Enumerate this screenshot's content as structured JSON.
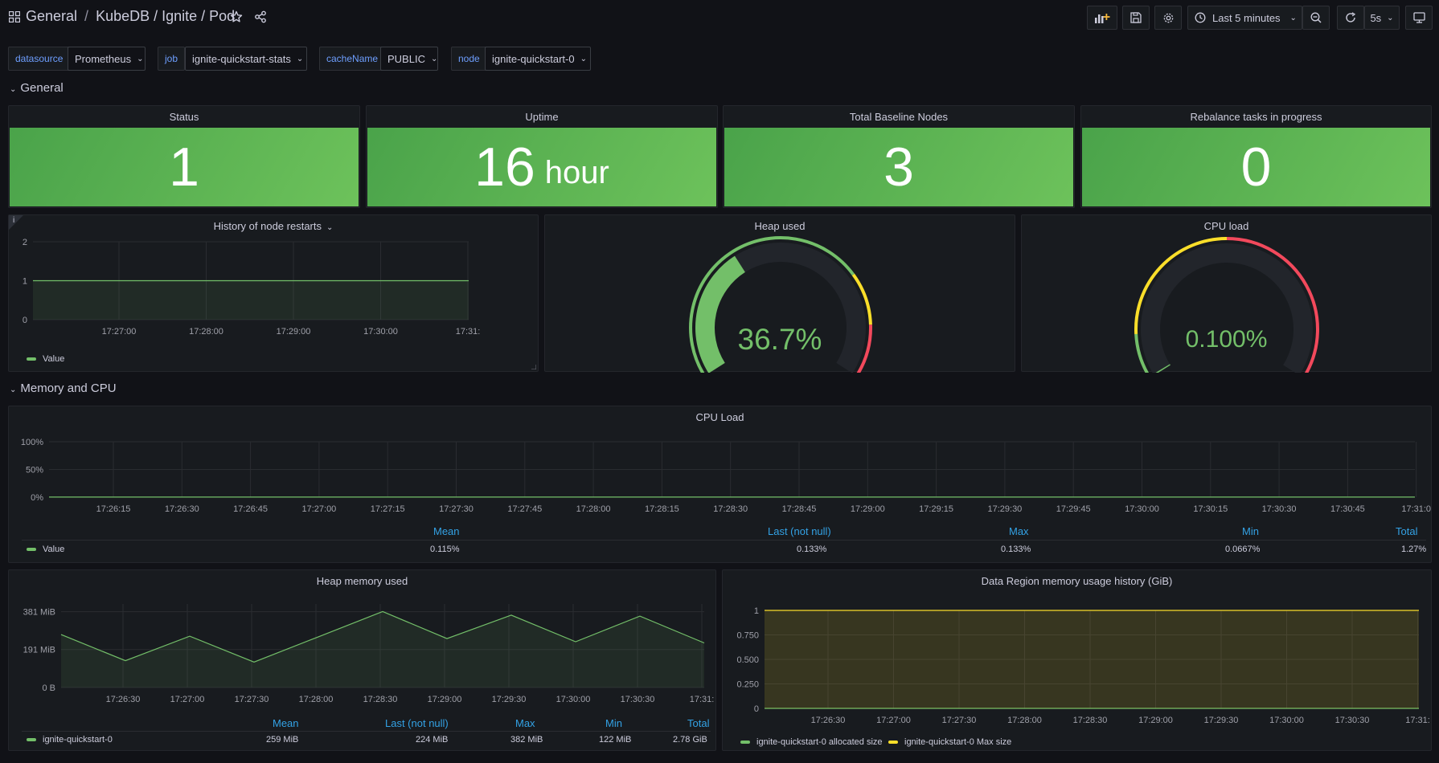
{
  "breadcrumb": {
    "root": "General",
    "separator": "/",
    "title": "KubeDB / Ignite / Pod"
  },
  "toolbar": {
    "time_range": "Last 5 minutes",
    "refresh_interval": "5s"
  },
  "variables": [
    {
      "label": "datasource",
      "value": "Prometheus"
    },
    {
      "label": "job",
      "value": "ignite-quickstart-stats"
    },
    {
      "label": "cacheName",
      "value": "PUBLIC"
    },
    {
      "label": "node",
      "value": "ignite-quickstart-0"
    }
  ],
  "rows": {
    "general": "General",
    "memory_cpu": "Memory and CPU"
  },
  "stats": [
    {
      "title": "Status",
      "value": "1",
      "unit": ""
    },
    {
      "title": "Uptime",
      "value": "16",
      "unit": "hour"
    },
    {
      "title": "Total Baseline Nodes",
      "value": "3",
      "unit": ""
    },
    {
      "title": "Rebalance tasks in progress",
      "value": "0",
      "unit": ""
    }
  ],
  "restarts": {
    "title": "History of node restarts",
    "info": "i",
    "legend": "Value",
    "color": "#73bf69",
    "chart_data": {
      "type": "line",
      "x": [
        "17:26:40",
        "17:27:00",
        "17:28:00",
        "17:29:00",
        "17:30:00",
        "17:31:00"
      ],
      "series": [
        {
          "name": "Value",
          "values": [
            1,
            1,
            1,
            1,
            1,
            1
          ]
        }
      ],
      "ylim": [
        0,
        2
      ],
      "yticks": [
        "0",
        "1",
        "2"
      ],
      "xticks": [
        "17:27:00",
        "17:28:00",
        "17:29:00",
        "17:30:00",
        "17:31:"
      ]
    }
  },
  "heap_gauge": {
    "title": "Heap used",
    "value": 36.7,
    "display": "36.7%",
    "color": "#73bf69"
  },
  "cpu_gauge": {
    "title": "CPU load",
    "value": 0.1,
    "display": "0.100%",
    "color": "#73bf69"
  },
  "cpu_load": {
    "title": "CPU Load",
    "legend": "Value",
    "color": "#73bf69",
    "headers": {
      "mean": "Mean",
      "last": "Last (not null)",
      "max": "Max",
      "min": "Min",
      "total": "Total"
    },
    "values": {
      "mean": "0.115%",
      "last": "0.133%",
      "max": "0.133%",
      "min": "0.0667%",
      "total": "1.27%"
    },
    "chart_data": {
      "type": "line",
      "yticks": [
        "0%",
        "50%",
        "100%"
      ],
      "ylim": [
        0,
        100
      ],
      "xticks": [
        "17:26:15",
        "17:26:30",
        "17:26:45",
        "17:27:00",
        "17:27:15",
        "17:27:30",
        "17:27:45",
        "17:28:00",
        "17:28:15",
        "17:28:30",
        "17:28:45",
        "17:29:00",
        "17:29:15",
        "17:29:30",
        "17:29:45",
        "17:30:00",
        "17:30:15",
        "17:30:30",
        "17:30:45",
        "17:31:0"
      ],
      "series": [
        {
          "name": "Value",
          "values": [
            0.1,
            0.1,
            0.1,
            0.1,
            0.13,
            0.13
          ]
        }
      ]
    }
  },
  "heap_memory": {
    "title": "Heap memory used",
    "legend": "ignite-quickstart-0",
    "color": "#73bf69",
    "headers": {
      "mean": "Mean",
      "last": "Last (not null)",
      "max": "Max",
      "min": "Min",
      "total": "Total"
    },
    "values": {
      "mean": "259 MiB",
      "last": "224 MiB",
      "max": "382 MiB",
      "min": "122 MiB",
      "total": "2.78 GiB"
    },
    "chart_data": {
      "type": "area",
      "yticks": [
        "0 B",
        "191 MiB",
        "381 MiB"
      ],
      "ylim": [
        0,
        420
      ],
      "xticks": [
        "17:26:30",
        "17:27:00",
        "17:27:30",
        "17:28:00",
        "17:28:30",
        "17:29:00",
        "17:29:30",
        "17:30:00",
        "17:30:30",
        "17:31:"
      ],
      "x": [
        "17:26:10",
        "17:26:30",
        "17:26:55",
        "17:27:30",
        "17:28:00",
        "17:28:30",
        "17:29:00",
        "17:29:30",
        "17:30:00",
        "17:30:30",
        "17:31:00"
      ],
      "series": [
        {
          "name": "ignite-quickstart-0",
          "values": [
            266,
            135,
            258,
            128,
            255,
            382,
            246,
            364,
            230,
            359,
            224
          ]
        }
      ]
    }
  },
  "data_region": {
    "title": "Data Region memory usage history (GiB)",
    "legend": [
      "ignite-quickstart-0 allocated size",
      "ignite-quickstart-0 Max size"
    ],
    "colors": [
      "#73bf69",
      "#fade2a"
    ],
    "chart_data": {
      "type": "area",
      "yticks": [
        "0",
        "0.250",
        "0.500",
        "0.750",
        "1"
      ],
      "ylim": [
        0,
        1
      ],
      "xticks": [
        "17:26:30",
        "17:27:00",
        "17:27:30",
        "17:28:00",
        "17:28:30",
        "17:29:00",
        "17:29:30",
        "17:30:00",
        "17:30:30",
        "17:31:"
      ],
      "series": [
        {
          "name": "ignite-quickstart-0 allocated size",
          "values": [
            0,
            0
          ]
        },
        {
          "name": "ignite-quickstart-0 Max size",
          "values": [
            1,
            1
          ]
        }
      ]
    }
  }
}
